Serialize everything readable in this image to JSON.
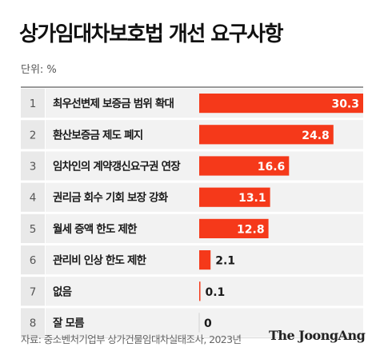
{
  "title": "상가임대차보호법 개선 요구사항",
  "unit": "단위: %",
  "source": "자료: 중소벤처기업부 상가건물임대차실태조사, 2023년",
  "logo": "The JoongAng",
  "colors": {
    "bar": "#f5391a",
    "row_bg": "#f2f2f2",
    "rank_bg": "#e9e9e9"
  },
  "chart_data": {
    "type": "bar",
    "orientation": "horizontal",
    "title": "상가임대차보호법 개선 요구사항",
    "unit": "%",
    "xlim": [
      0,
      30.3
    ],
    "grid": false,
    "ranks": [
      "1",
      "2",
      "3",
      "4",
      "5",
      "6",
      "7",
      "8"
    ],
    "categories": [
      "최우선변제 보증금 범위 확대",
      "환산보증금 제도 폐지",
      "임차인의 계약갱신요구권 연장",
      "권리금 회수 기회 보장 강화",
      "월세 증액 한도 제한",
      "관리비 인상 한도 제한",
      "없음",
      "잘 모름"
    ],
    "values": [
      30.3,
      24.8,
      16.6,
      13.1,
      12.8,
      2.1,
      0.1,
      0
    ],
    "value_labels": [
      "30.3",
      "24.8",
      "16.6",
      "13.1",
      "12.8",
      "2.1",
      "0.1",
      "0"
    ]
  }
}
